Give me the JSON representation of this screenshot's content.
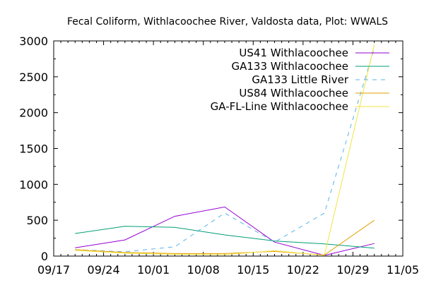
{
  "chart_data": {
    "type": "line",
    "title": "Fecal Coliform, Withlacoochee River, Valdosta data, Plot: WWALS",
    "xlabel": "",
    "ylabel": "",
    "xlim": [
      "2016-09-17",
      "2016-11-05"
    ],
    "ylim": [
      0,
      3000
    ],
    "x_ticks": [
      "09/17",
      "09/24",
      "10/01",
      "10/08",
      "10/15",
      "10/22",
      "10/29",
      "11/05"
    ],
    "y_ticks": [
      0,
      500,
      1000,
      1500,
      2000,
      2500,
      3000
    ],
    "grid": false,
    "legend_position": "top-right",
    "series": [
      {
        "name": "US41 Withlacoochee",
        "color": "#9400d3",
        "dash": "solid",
        "points": [
          {
            "x": "2016-09-20",
            "y": 115
          },
          {
            "x": "2016-09-27",
            "y": 225
          },
          {
            "x": "2016-10-04",
            "y": 555
          },
          {
            "x": "2016-10-11",
            "y": 685
          },
          {
            "x": "2016-10-18",
            "y": 195
          },
          {
            "x": "2016-10-25",
            "y": 10
          },
          {
            "x": "2016-11-01",
            "y": 175
          }
        ]
      },
      {
        "name": "GA133 Withlacoochee",
        "color": "#009e73",
        "dash": "solid",
        "points": [
          {
            "x": "2016-09-20",
            "y": 315
          },
          {
            "x": "2016-09-27",
            "y": 415
          },
          {
            "x": "2016-10-04",
            "y": 400
          },
          {
            "x": "2016-10-11",
            "y": 295
          },
          {
            "x": "2016-10-18",
            "y": 210
          },
          {
            "x": "2016-10-25",
            "y": 170
          },
          {
            "x": "2016-11-01",
            "y": 110
          }
        ]
      },
      {
        "name": "GA133 Little River",
        "color": "#56b4e9",
        "dash": "dashed",
        "points": [
          {
            "x": "2016-09-20",
            "y": 90
          },
          {
            "x": "2016-09-27",
            "y": 60
          },
          {
            "x": "2016-10-04",
            "y": 130
          },
          {
            "x": "2016-10-11",
            "y": 600
          },
          {
            "x": "2016-10-18",
            "y": 195
          },
          {
            "x": "2016-10-25",
            "y": 600
          },
          {
            "x": "2016-11-01",
            "y": 2900
          }
        ]
      },
      {
        "name": "US84 Withlacoochee",
        "color": "#e69f00",
        "dash": "solid",
        "points": [
          {
            "x": "2016-09-20",
            "y": 90
          },
          {
            "x": "2016-09-27",
            "y": 50
          },
          {
            "x": "2016-10-04",
            "y": 35
          },
          {
            "x": "2016-10-11",
            "y": 35
          },
          {
            "x": "2016-10-18",
            "y": 65
          },
          {
            "x": "2016-10-25",
            "y": 15
          },
          {
            "x": "2016-11-01",
            "y": 500
          }
        ]
      },
      {
        "name": "GA-FL-Line Withlacoochee",
        "color": "#f0e442",
        "dash": "solid",
        "points": [
          {
            "x": "2016-09-20",
            "y": 80
          },
          {
            "x": "2016-09-27",
            "y": 40
          },
          {
            "x": "2016-10-04",
            "y": 25
          },
          {
            "x": "2016-10-11",
            "y": 20
          },
          {
            "x": "2016-10-18",
            "y": 75
          },
          {
            "x": "2016-10-25",
            "y": 10
          },
          {
            "x": "2016-11-01",
            "y": 2950
          }
        ]
      }
    ]
  }
}
